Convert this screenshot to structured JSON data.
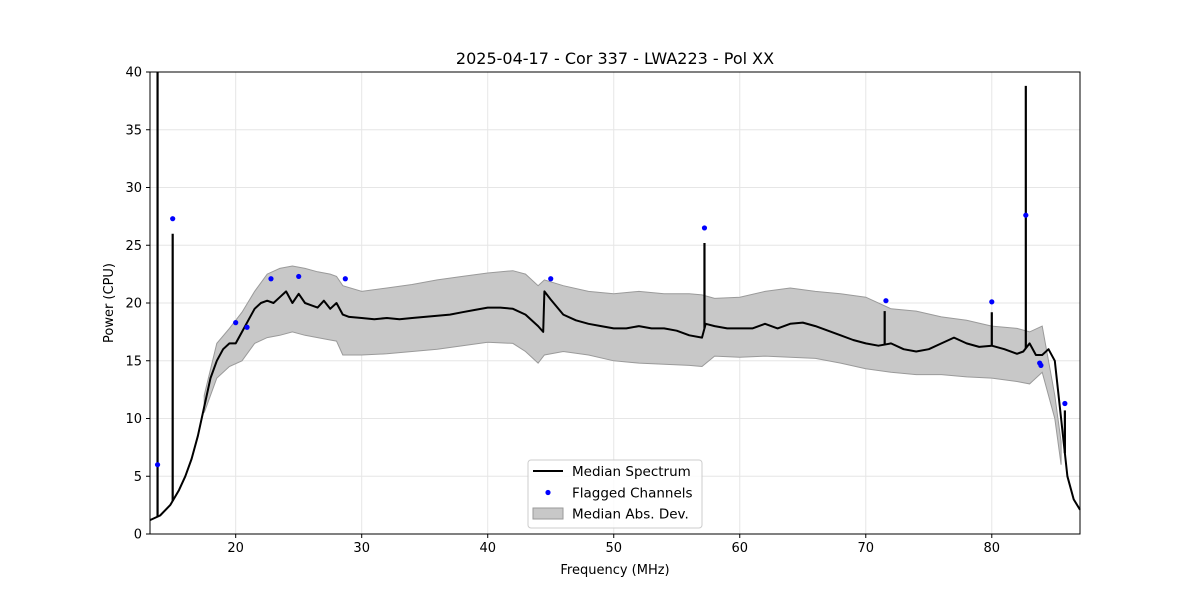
{
  "chart_data": {
    "type": "line",
    "title": "2025-04-17 - Cor 337 - LWA223 - Pol XX",
    "xlabel": "Frequency (MHz)",
    "ylabel": "Power (CPU)",
    "xlim": [
      13.2,
      87.0
    ],
    "ylim": [
      0,
      40
    ],
    "xticks": [
      20,
      30,
      40,
      50,
      60,
      70,
      80
    ],
    "yticks": [
      0,
      5,
      10,
      15,
      20,
      25,
      30,
      35,
      40
    ],
    "grid": true,
    "legend_position": "lower-center",
    "legend": [
      "Median Spectrum",
      "Flagged Channels",
      "Median Abs. Dev."
    ],
    "colors": {
      "median": "#000000",
      "flagged": "#0000ff",
      "mad_fill": "#c8c8c8",
      "mad_edge": "#9a9a9a",
      "grid": "#e6e6e6"
    },
    "median_spectrum": {
      "x": [
        13.2,
        14.0,
        14.8,
        15.5,
        16.0,
        16.5,
        17.0,
        17.5,
        18.0,
        18.5,
        19.0,
        19.5,
        20.0,
        20.5,
        21.0,
        21.5,
        22.0,
        22.5,
        23.0,
        23.5,
        24.0,
        24.5,
        25.0,
        25.5,
        26.0,
        26.5,
        27.0,
        27.5,
        28.0,
        28.5,
        29.0,
        30.0,
        31.0,
        32.0,
        33.0,
        34.0,
        35.0,
        36.0,
        37.0,
        38.0,
        39.0,
        40.0,
        41.0,
        42.0,
        43.0,
        44.0,
        44.4,
        44.5,
        45.0,
        46.0,
        47.0,
        48.0,
        49.0,
        50.0,
        51.0,
        52.0,
        53.0,
        54.0,
        55.0,
        56.0,
        57.0,
        57.3,
        58.0,
        59.0,
        60.0,
        61.0,
        62.0,
        63.0,
        64.0,
        65.0,
        66.0,
        67.0,
        68.0,
        69.0,
        70.0,
        71.0,
        72.0,
        73.0,
        74.0,
        75.0,
        76.0,
        77.0,
        78.0,
        79.0,
        80.0,
        81.0,
        82.0,
        82.5,
        83.0,
        83.5,
        84.0,
        84.5,
        85.0,
        85.5,
        86.0,
        86.5,
        87.0
      ],
      "y": [
        1.2,
        1.6,
        2.5,
        3.8,
        5.0,
        6.5,
        8.5,
        11.0,
        13.5,
        15.0,
        16.0,
        16.5,
        16.5,
        17.5,
        18.5,
        19.5,
        20.0,
        20.2,
        20.0,
        20.5,
        21.0,
        20.0,
        20.8,
        20.0,
        19.8,
        19.6,
        20.2,
        19.5,
        20.0,
        19.0,
        18.8,
        18.7,
        18.6,
        18.7,
        18.6,
        18.7,
        18.8,
        18.9,
        19.0,
        19.2,
        19.4,
        19.6,
        19.6,
        19.5,
        19.0,
        18.0,
        17.5,
        21.0,
        20.3,
        19.0,
        18.5,
        18.2,
        18.0,
        17.8,
        17.8,
        18.0,
        17.8,
        17.8,
        17.6,
        17.2,
        17.0,
        18.2,
        18.0,
        17.8,
        17.8,
        17.8,
        18.2,
        17.8,
        18.2,
        18.3,
        18.0,
        17.6,
        17.2,
        16.8,
        16.5,
        16.3,
        16.5,
        16.0,
        15.8,
        16.0,
        16.5,
        17.0,
        16.5,
        16.2,
        16.3,
        16.0,
        15.6,
        15.8,
        16.5,
        15.5,
        15.5,
        16.0,
        15.0,
        10.0,
        5.0,
        3.0,
        2.1
      ]
    },
    "mad_band": {
      "x": [
        17.5,
        18.5,
        19.5,
        20.5,
        21.5,
        22.5,
        23.5,
        24.5,
        25.5,
        26.5,
        27.5,
        28.0,
        28.5,
        30.0,
        32.0,
        34.0,
        36.0,
        38.0,
        40.0,
        42.0,
        43.0,
        44.0,
        44.5,
        46.0,
        48.0,
        50.0,
        52.0,
        54.0,
        56.0,
        57.0,
        58.0,
        60.0,
        62.0,
        64.0,
        66.0,
        68.0,
        70.0,
        72.0,
        74.0,
        76.0,
        78.0,
        80.0,
        82.0,
        83.0,
        84.0,
        85.0,
        85.5
      ],
      "upper": [
        12.0,
        16.5,
        17.8,
        19.2,
        21.0,
        22.5,
        23.0,
        23.2,
        23.0,
        22.7,
        22.5,
        22.3,
        21.5,
        21.0,
        21.3,
        21.6,
        22.0,
        22.3,
        22.6,
        22.8,
        22.5,
        21.5,
        22.0,
        21.5,
        21.0,
        20.8,
        21.0,
        20.8,
        20.8,
        20.7,
        20.4,
        20.5,
        21.0,
        21.3,
        21.0,
        20.8,
        20.5,
        19.5,
        19.3,
        18.8,
        18.5,
        18.0,
        17.8,
        17.5,
        18.0,
        12.0,
        8.0
      ],
      "lower": [
        10.5,
        13.5,
        14.5,
        15.0,
        16.5,
        17.0,
        17.2,
        17.5,
        17.2,
        17.0,
        16.8,
        16.7,
        15.5,
        15.5,
        15.6,
        15.8,
        16.0,
        16.3,
        16.6,
        16.5,
        15.8,
        14.8,
        15.5,
        15.8,
        15.5,
        15.0,
        14.8,
        14.7,
        14.6,
        14.5,
        15.4,
        15.3,
        15.4,
        15.3,
        15.2,
        14.8,
        14.3,
        14.0,
        13.8,
        13.8,
        13.6,
        13.5,
        13.2,
        13.0,
        14.0,
        10.0,
        6.0
      ]
    },
    "spikes": [
      {
        "x": 13.8,
        "y": 40.0
      },
      {
        "x": 15.0,
        "y": 26.0
      },
      {
        "x": 57.2,
        "y": 25.2
      },
      {
        "x": 71.5,
        "y": 19.3
      },
      {
        "x": 80.0,
        "y": 19.2
      },
      {
        "x": 82.7,
        "y": 38.8
      },
      {
        "x": 85.8,
        "y": 10.7
      }
    ],
    "flagged_channels": {
      "x": [
        13.8,
        15.0,
        20.0,
        20.9,
        22.8,
        25.0,
        28.7,
        45.0,
        57.2,
        71.6,
        80.0,
        82.7,
        83.8,
        83.9,
        85.8
      ],
      "y": [
        6.0,
        27.3,
        18.3,
        17.9,
        22.1,
        22.3,
        22.1,
        22.1,
        26.5,
        20.2,
        20.1,
        27.6,
        14.8,
        14.6,
        11.3
      ]
    }
  }
}
